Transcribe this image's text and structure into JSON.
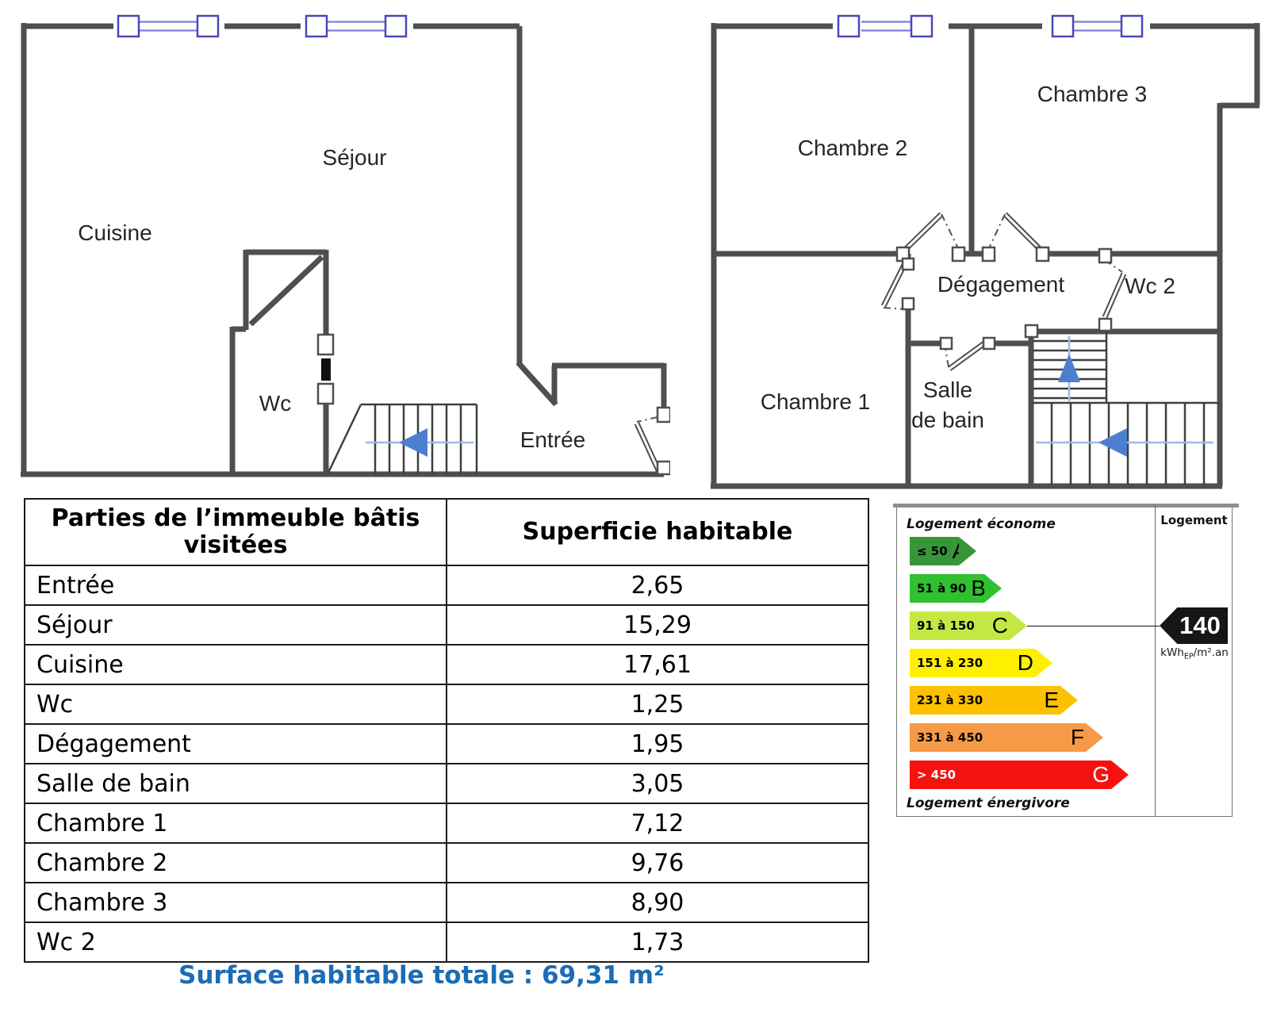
{
  "plans": {
    "ground": {
      "labels": {
        "sejour": "Séjour",
        "cuisine": "Cuisine",
        "wc": "Wc",
        "entree": "Entrée"
      }
    },
    "first": {
      "labels": {
        "chambre2": "Chambre 2",
        "chambre3": "Chambre 3",
        "chambre1": "Chambre 1",
        "degagement": "Dégagement",
        "wc2": "Wc 2",
        "salle1": "Salle",
        "salle2": "de bain"
      }
    }
  },
  "table": {
    "headers": [
      "Parties de l’immeuble bâtis visitées",
      "Superficie habitable"
    ],
    "rows": [
      {
        "label": "Entrée",
        "value": "2,65"
      },
      {
        "label": "Séjour",
        "value": "15,29"
      },
      {
        "label": "Cuisine",
        "value": "17,61"
      },
      {
        "label": "Wc",
        "value": "1,25"
      },
      {
        "label": "Dégagement",
        "value": "1,95"
      },
      {
        "label": "Salle de bain",
        "value": "3,05"
      },
      {
        "label": "Chambre 1",
        "value": "7,12"
      },
      {
        "label": "Chambre 2",
        "value": "9,76"
      },
      {
        "label": "Chambre 3",
        "value": "8,90"
      },
      {
        "label": "Wc 2",
        "value": "1,73"
      }
    ]
  },
  "energy": {
    "top_label": "Logement économe",
    "bottom_label": "Logement énergivore",
    "column_header": "Logement",
    "value": "140",
    "unit_prefix": "kWh",
    "unit_sub": "EP",
    "unit_suffix": "/m².an",
    "arrow_color": "#161616",
    "classes": [
      {
        "letter": "A",
        "range": "≤ 50",
        "color": "#379637",
        "text": "#000000"
      },
      {
        "letter": "B",
        "range": "51 à 90",
        "color": "#30c030",
        "text": "#000000"
      },
      {
        "letter": "C",
        "range": "91 à 150",
        "color": "#c3e844",
        "text": "#000000",
        "selected": true
      },
      {
        "letter": "D",
        "range": "151 à 230",
        "color": "#fff000",
        "text": "#000000"
      },
      {
        "letter": "E",
        "range": "231 à 330",
        "color": "#fcc200",
        "text": "#000000"
      },
      {
        "letter": "F",
        "range": "331 à 450",
        "color": "#f79a47",
        "text": "#000000"
      },
      {
        "letter": "G",
        "range": "> 450",
        "color": "#f61111",
        "text": "#ffffff"
      }
    ]
  },
  "footer": {
    "text": "Surface habitable totale : 69,31 m²",
    "color": "#1b6cb5"
  }
}
